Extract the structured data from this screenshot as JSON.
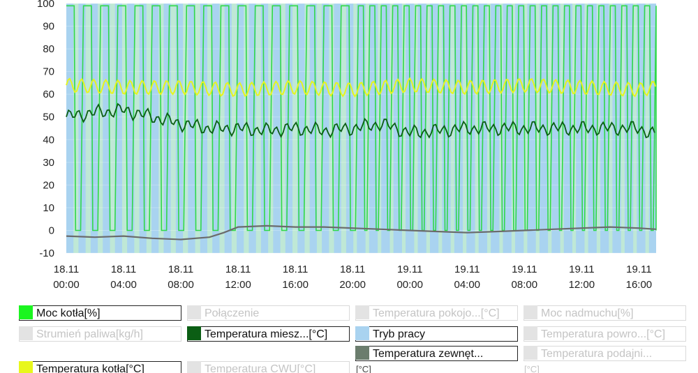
{
  "chart_data": {
    "type": "line",
    "ylim": [
      -10,
      100
    ],
    "yticks": [
      100,
      90,
      80,
      70,
      60,
      50,
      40,
      30,
      20,
      10,
      0,
      -10
    ],
    "xticks": [
      {
        "date": "18.11",
        "time": "00:00"
      },
      {
        "date": "18.11",
        "time": "04:00"
      },
      {
        "date": "18.11",
        "time": "08:00"
      },
      {
        "date": "18.11",
        "time": "12:00"
      },
      {
        "date": "18.11",
        "time": "16:00"
      },
      {
        "date": "18.11",
        "time": "20:00"
      },
      {
        "date": "19.11",
        "time": "00:00"
      },
      {
        "date": "19.11",
        "time": "04:00"
      },
      {
        "date": "19.11",
        "time": "08:00"
      },
      {
        "date": "19.11",
        "time": "12:00"
      },
      {
        "date": "19.11",
        "time": "16:00"
      }
    ],
    "x_unit": "hours",
    "x_range": [
      0,
      41.2
    ],
    "grid": true,
    "series": [
      {
        "name": "Moc kotła[%]",
        "color": "#2fd84a",
        "pattern": "on/off cycling between 0 and ~99, dense cycling after 20:00 on 18.11"
      },
      {
        "name": "Temperatura kotła[°C]",
        "color": "#e6f51e",
        "x": [
          0,
          4,
          8,
          12,
          16,
          20,
          24,
          28,
          32,
          36,
          40,
          41.2
        ],
        "values": [
          64,
          63,
          63,
          62,
          63,
          62,
          64,
          63,
          64,
          63,
          62,
          63
        ]
      },
      {
        "name": "Temperatura miesz...[°C]",
        "color": "#0b5e14",
        "x": [
          0,
          2,
          4,
          6,
          8,
          10,
          12,
          14,
          16,
          18,
          20,
          22,
          24,
          28,
          32,
          36,
          40,
          41.2
        ],
        "values": [
          50,
          52,
          53,
          50,
          47,
          45,
          45,
          44,
          45,
          44,
          45,
          47,
          43,
          45,
          45,
          45,
          45,
          42
        ]
      },
      {
        "name": "Temperatura zewnęt...[°C]",
        "color": "#6b6b6b",
        "x": [
          0,
          2,
          4,
          6,
          8,
          10,
          11,
          12,
          14,
          16,
          18,
          20,
          22,
          24,
          26,
          28,
          30,
          32,
          34,
          36,
          38,
          40,
          41.2
        ],
        "values": [
          -2.5,
          -3,
          -2.5,
          -3.5,
          -4,
          -3,
          -1,
          1.5,
          2,
          1.5,
          1.5,
          1,
          0.5,
          0,
          -0.5,
          -1,
          -0.5,
          0,
          0.5,
          1,
          1.5,
          1,
          0.5
        ]
      },
      {
        "name": "Tryb pracy",
        "color": "#a9d3f0",
        "pattern": "background band with periodic light-green stripes"
      }
    ]
  },
  "legend": {
    "items": [
      {
        "label": "Moc kotła[%]",
        "color": "#1bf520",
        "active": true
      },
      {
        "label": "Połączenie",
        "color": "#dddddd",
        "active": false
      },
      {
        "label": "Temperatura pokojo...[°C]",
        "color": "#dddddd",
        "active": false
      },
      {
        "label": "Moc nadmuchu[%]",
        "color": "#dddddd",
        "active": false
      },
      {
        "label": "Strumień paliwa[kg/h]",
        "color": "#dddddd",
        "active": false
      },
      {
        "label": "Temperatura miesz...[°C]",
        "color": "#0b5e14",
        "active": true
      },
      {
        "label": "Tryb pracy",
        "color": "#a9d3f0",
        "active": true
      },
      {
        "label": "Temperatura powro...[°C]",
        "color": "#dddddd",
        "active": false
      },
      {
        "label": "Temperatura zewnęt...",
        "color": "#6b7d6d",
        "active": true
      },
      {
        "label": "Temperatura podajni...",
        "color": "#dddddd",
        "active": false
      },
      {
        "label": "Temperatura kotła[°C]",
        "color": "#e8f71c",
        "active": true
      },
      {
        "label": "Temperatura CWU[°C]",
        "color": "#dddddd",
        "active": false
      }
    ],
    "extra_a": "[°C]",
    "extra_b": "[°C]"
  }
}
